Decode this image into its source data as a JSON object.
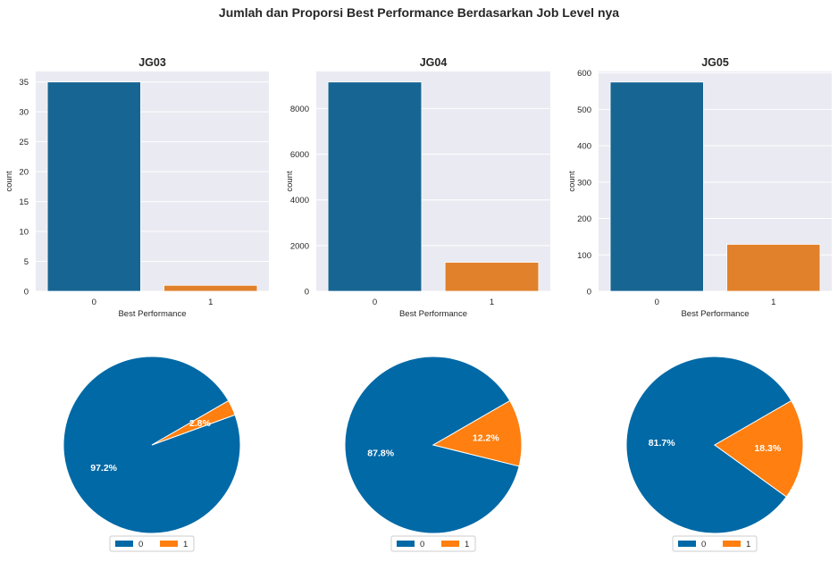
{
  "figure": {
    "title": "Jumlah dan Proporsi Best Performance Berdasarkan Job Level nya"
  },
  "colors": {
    "bar_0": "#176592",
    "bar_1": "#e1812c",
    "pie_0": "#0069a6",
    "pie_1": "#ff7f10",
    "axes_bg": "#eaeaf2",
    "grid": "#ffffff"
  },
  "chart_data": [
    {
      "type": "bar",
      "title": "JG03",
      "categories": [
        "0",
        "1"
      ],
      "values": [
        35,
        1
      ],
      "xlabel": "Best Performance",
      "ylabel": "count",
      "ylim": [
        0,
        36.75
      ],
      "yticks": [
        0,
        5,
        10,
        15,
        20,
        25,
        30,
        35
      ],
      "grid": true
    },
    {
      "type": "bar",
      "title": "JG04",
      "categories": [
        "0",
        "1"
      ],
      "values": [
        9160,
        1270
      ],
      "xlabel": "Best Performance",
      "ylabel": "count",
      "ylim": [
        0,
        9620
      ],
      "yticks": [
        0,
        2000,
        4000,
        6000,
        8000
      ],
      "grid": true
    },
    {
      "type": "bar",
      "title": "JG05",
      "categories": [
        "0",
        "1"
      ],
      "values": [
        575,
        129
      ],
      "xlabel": "Best Performance",
      "ylabel": "count",
      "ylim": [
        0,
        604
      ],
      "yticks": [
        0,
        100,
        200,
        300,
        400,
        500,
        600
      ],
      "grid": true
    },
    {
      "type": "pie",
      "labels": [
        "0",
        "1"
      ],
      "values": [
        97.2,
        2.8
      ],
      "value_labels": [
        "97.2%",
        "2.8%"
      ],
      "legend": [
        "0",
        "1"
      ],
      "legend_position": "bottom-center"
    },
    {
      "type": "pie",
      "labels": [
        "0",
        "1"
      ],
      "values": [
        87.8,
        12.2
      ],
      "value_labels": [
        "87.8%",
        "12.2%"
      ],
      "legend": [
        "0",
        "1"
      ],
      "legend_position": "bottom-center"
    },
    {
      "type": "pie",
      "labels": [
        "0",
        "1"
      ],
      "values": [
        81.7,
        18.3
      ],
      "value_labels": [
        "81.7%",
        "18.3%"
      ],
      "legend": [
        "0",
        "1"
      ],
      "legend_position": "bottom-center"
    }
  ]
}
